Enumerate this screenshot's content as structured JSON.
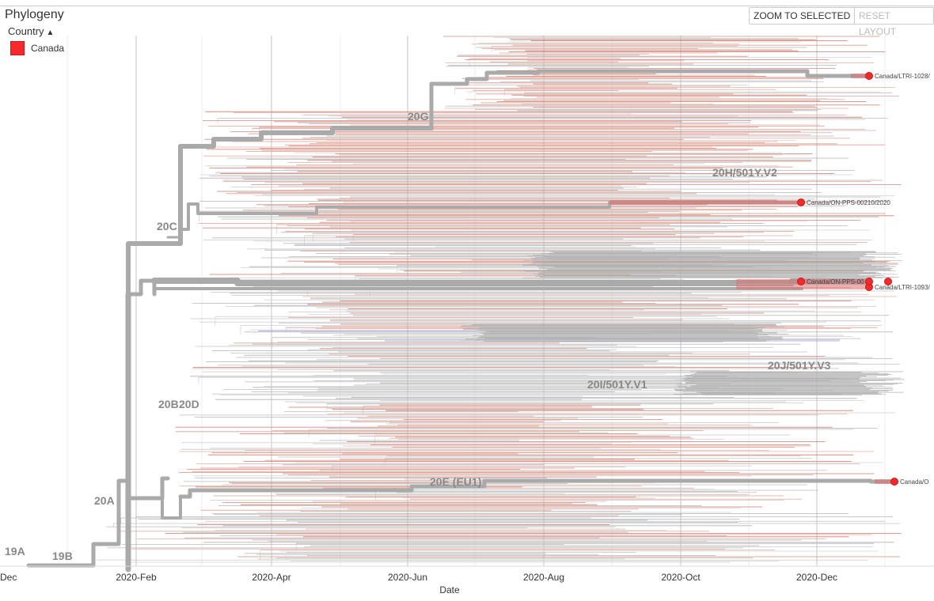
{
  "panel": {
    "title": "Phylogeny"
  },
  "toolbar": {
    "zoom_label": "ZOOM TO SELECTED",
    "reset_label": "RESET LAYOUT"
  },
  "legend": {
    "toggle_label": "Country",
    "items": [
      {
        "label": "Canada",
        "color": "#f62a2a"
      }
    ]
  },
  "axis": {
    "xlabel": "Date",
    "ticks": [
      "Dec",
      "2020-Feb",
      "2020-Apr",
      "2020-Jun",
      "2020-Aug",
      "2020-Oct",
      "2020-Dec"
    ]
  },
  "clades": [
    "19A",
    "19B",
    "20A",
    "20B",
    "20D",
    "20C",
    "20G",
    "20H/501Y.V2",
    "20I/501Y.V1",
    "20J/501Y.V3",
    "20E (EU1)"
  ],
  "tips": [
    "Canada/LTRI-1028/",
    "Canada/ON-PPS-00210/2020",
    "Canada/ON-PPS-00",
    "Canada/LTRI-1093/",
    "Canada/O"
  ],
  "colors": {
    "branch": "#aaaaaa",
    "canada": "#f62a2a",
    "grid": "#e0e0e0"
  }
}
